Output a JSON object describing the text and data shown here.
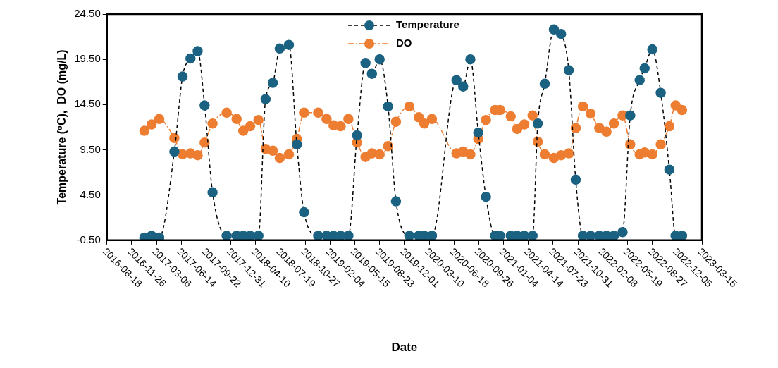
{
  "chart_data": {
    "type": "line",
    "xlabel": "Date",
    "ylabel": "Temperature (⁰C),  DO (mg/L)",
    "x": [
      "2017-01-16",
      "2017-02-14",
      "2017-03-17",
      "2017-05-17",
      "2017-06-19",
      "2017-07-21",
      "2017-08-19",
      "2017-09-16",
      "2017-10-18",
      "2017-12-14",
      "2018-01-23",
      "2018-02-19",
      "2018-03-19",
      "2018-04-21",
      "2018-05-20",
      "2018-06-18",
      "2018-07-16",
      "2018-08-22",
      "2018-09-23",
      "2018-10-22",
      "2018-12-18",
      "2019-01-21",
      "2019-02-18",
      "2019-03-19",
      "2019-04-19",
      "2019-05-24",
      "2019-06-27",
      "2019-07-23",
      "2019-08-23",
      "2019-09-26",
      "2019-10-28",
      "2019-12-21",
      "2020-01-28",
      "2020-02-19",
      "2020-03-21",
      "2020-06-28",
      "2020-07-25",
      "2020-08-23",
      "2020-09-24",
      "2020-10-25",
      "2020-12-01",
      "2020-12-21",
      "2021-02-02",
      "2021-02-28",
      "2021-03-29",
      "2021-05-01",
      "2021-05-22",
      "2021-06-19",
      "2021-07-26",
      "2021-08-24",
      "2021-09-24",
      "2021-10-22",
      "2021-11-20",
      "2021-12-21",
      "2022-01-25",
      "2022-02-23",
      "2022-03-25",
      "2022-04-29",
      "2022-05-30",
      "2022-07-07",
      "2022-07-27",
      "2022-08-27",
      "2022-09-30",
      "2022-11-04",
      "2022-11-29",
      "2022-12-25"
    ],
    "series": [
      {
        "name": "Temperature",
        "color": "#1b6282",
        "line_style": "dashed",
        "values": [
          -0.2,
          0,
          -0.2,
          9.3,
          17.6,
          19.6,
          20.4,
          14.4,
          4.8,
          0,
          0,
          0,
          0,
          0,
          15.1,
          16.9,
          20.7,
          21.1,
          10.1,
          2.6,
          0,
          0,
          0,
          0,
          0,
          11.1,
          19.1,
          17.9,
          19.5,
          14.3,
          3.8,
          0,
          0,
          0,
          0,
          17.2,
          16.5,
          19.5,
          11.4,
          4.3,
          0,
          0,
          0,
          0,
          0,
          0,
          12.4,
          16.8,
          22.8,
          22.3,
          18.3,
          6.2,
          0,
          0,
          0,
          0,
          0,
          0.4,
          13.3,
          17.2,
          18.5,
          20.6,
          15.8,
          7.3,
          0,
          0
        ]
      },
      {
        "name": "DO",
        "color": "#ed7d31",
        "line_style": "dotted",
        "values": [
          11.6,
          12.3,
          12.9,
          10.8,
          9.0,
          9.1,
          8.9,
          10.3,
          12.4,
          13.6,
          12.9,
          11.6,
          12.1,
          12.8,
          9.6,
          9.4,
          8.6,
          9.0,
          10.7,
          13.6,
          13.6,
          12.9,
          12.2,
          12.1,
          12.9,
          10.3,
          8.7,
          9.1,
          9.0,
          9.9,
          12.6,
          14.3,
          13.1,
          12.4,
          12.9,
          9.1,
          9.3,
          9.0,
          10.7,
          12.8,
          13.9,
          13.9,
          13.2,
          11.8,
          12.3,
          13.3,
          10.4,
          9.0,
          8.6,
          8.9,
          9.1,
          11.9,
          14.3,
          13.5,
          11.9,
          11.5,
          12.4,
          13.3,
          10.1,
          9.0,
          9.2,
          9.0,
          10.1,
          12.1,
          14.4,
          13.9
        ]
      }
    ],
    "marker": "circle",
    "xlim": [
      "2016-08-18",
      "2023-03-15"
    ],
    "xticks": [
      "2016-08-18",
      "2016-11-26",
      "2017-03-06",
      "2017-06-14",
      "2017-09-22",
      "2017-12-31",
      "2018-04-10",
      "2018-07-19",
      "2018-10-27",
      "2019-02-04",
      "2019-05-15",
      "2019-08-23",
      "2019-12-01",
      "2020-03-10",
      "2020-06-18",
      "2020-09-26",
      "2021-01-04",
      "2021-04-14",
      "2021-07-23",
      "2021-10-31",
      "2022-02-08",
      "2022-05-19",
      "2022-08-27",
      "2022-12-05",
      "2023-03-15"
    ],
    "ylim": [
      -0.5,
      24.5
    ],
    "yticks": [
      {
        "value": -0.5,
        "label": "-0.50"
      },
      {
        "value": 4.5,
        "label": "4.50"
      },
      {
        "value": 9.5,
        "label": "9.50"
      },
      {
        "value": 14.5,
        "label": "14.50"
      },
      {
        "value": 19.5,
        "label": "19.50"
      },
      {
        "value": 24.5,
        "label": "24.50"
      }
    ],
    "grid": false,
    "legend": "top"
  }
}
